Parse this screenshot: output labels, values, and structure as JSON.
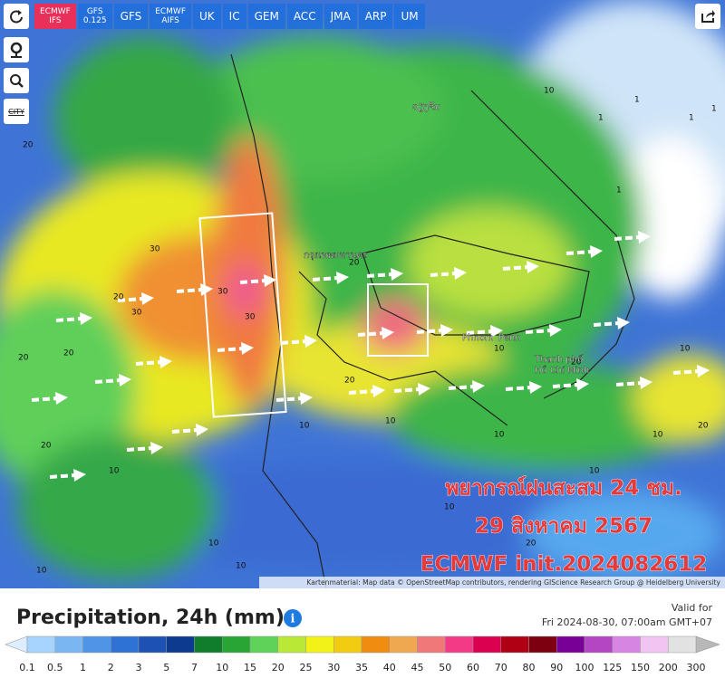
{
  "toolbar": {
    "models": [
      {
        "lines": [
          "ECMWF",
          "IFS"
        ],
        "active": true
      },
      {
        "lines": [
          "GFS",
          "0.125"
        ]
      },
      {
        "lines": [
          "GFS"
        ]
      },
      {
        "lines": [
          "ECMWF",
          "AIFS"
        ]
      },
      {
        "lines": [
          "UK"
        ]
      },
      {
        "lines": [
          "IC"
        ]
      },
      {
        "lines": [
          "GEM"
        ]
      },
      {
        "lines": [
          "ACC"
        ]
      },
      {
        "lines": [
          "JMA"
        ]
      },
      {
        "lines": [
          "ARP"
        ]
      },
      {
        "lines": [
          "UM"
        ]
      }
    ],
    "city_label": "CITY"
  },
  "map": {
    "labels": [
      "20",
      "30",
      "30",
      "30",
      "20",
      "20",
      "20",
      "30",
      "10",
      "20",
      "20",
      "10",
      "10",
      "20",
      "10",
      "10",
      "20",
      "10",
      "1",
      "1",
      "1",
      "1",
      "10",
      "20",
      "10",
      "20",
      "10",
      "10",
      "1",
      "10",
      "10",
      "10"
    ],
    "places": [
      "Phnom",
      "Penh",
      "Thanh phố",
      "Hồ Chí Minh",
      "กรุงเทพมหานคร",
      "ວຽງຈັນ"
    ],
    "overlay": [
      "พยากรณ์ฝนสะสม 24 ชม.",
      "29 สิงหาคม 2567",
      "ECMWF init.2024082612"
    ],
    "attribution": "Kartenmaterial: Map data © OpenStreetMap contributors, rendering GIScience Research Group @ Heidelberg University"
  },
  "footer": {
    "title": "Precipitation, 24h (mm)",
    "valid_label": "Valid for",
    "valid_time": "Fri 2024-08-30, 07:00am GMT+07"
  },
  "legend": {
    "ticks": [
      0.1,
      0.5,
      1,
      2,
      3,
      5,
      7,
      10,
      15,
      20,
      25,
      30,
      35,
      40,
      45,
      50,
      60,
      70,
      80,
      90,
      100,
      125,
      150,
      200,
      300
    ],
    "colors": [
      "#a6d4ff",
      "#7ab6f2",
      "#4f94e6",
      "#2f72d6",
      "#1d52b4",
      "#0d3a8e",
      "#0f7d2c",
      "#28a534",
      "#5fd25a",
      "#b9e836",
      "#f2f218",
      "#f2cc10",
      "#f08c10",
      "#f0a850",
      "#f07878",
      "#f23a86",
      "#dc0050",
      "#b00014",
      "#7c0010",
      "#780096",
      "#b446c4",
      "#d686e2",
      "#f2c4f2",
      "#e2e2e2"
    ],
    "low_color": "#dceeff",
    "high_color": "#b8b8b8"
  }
}
